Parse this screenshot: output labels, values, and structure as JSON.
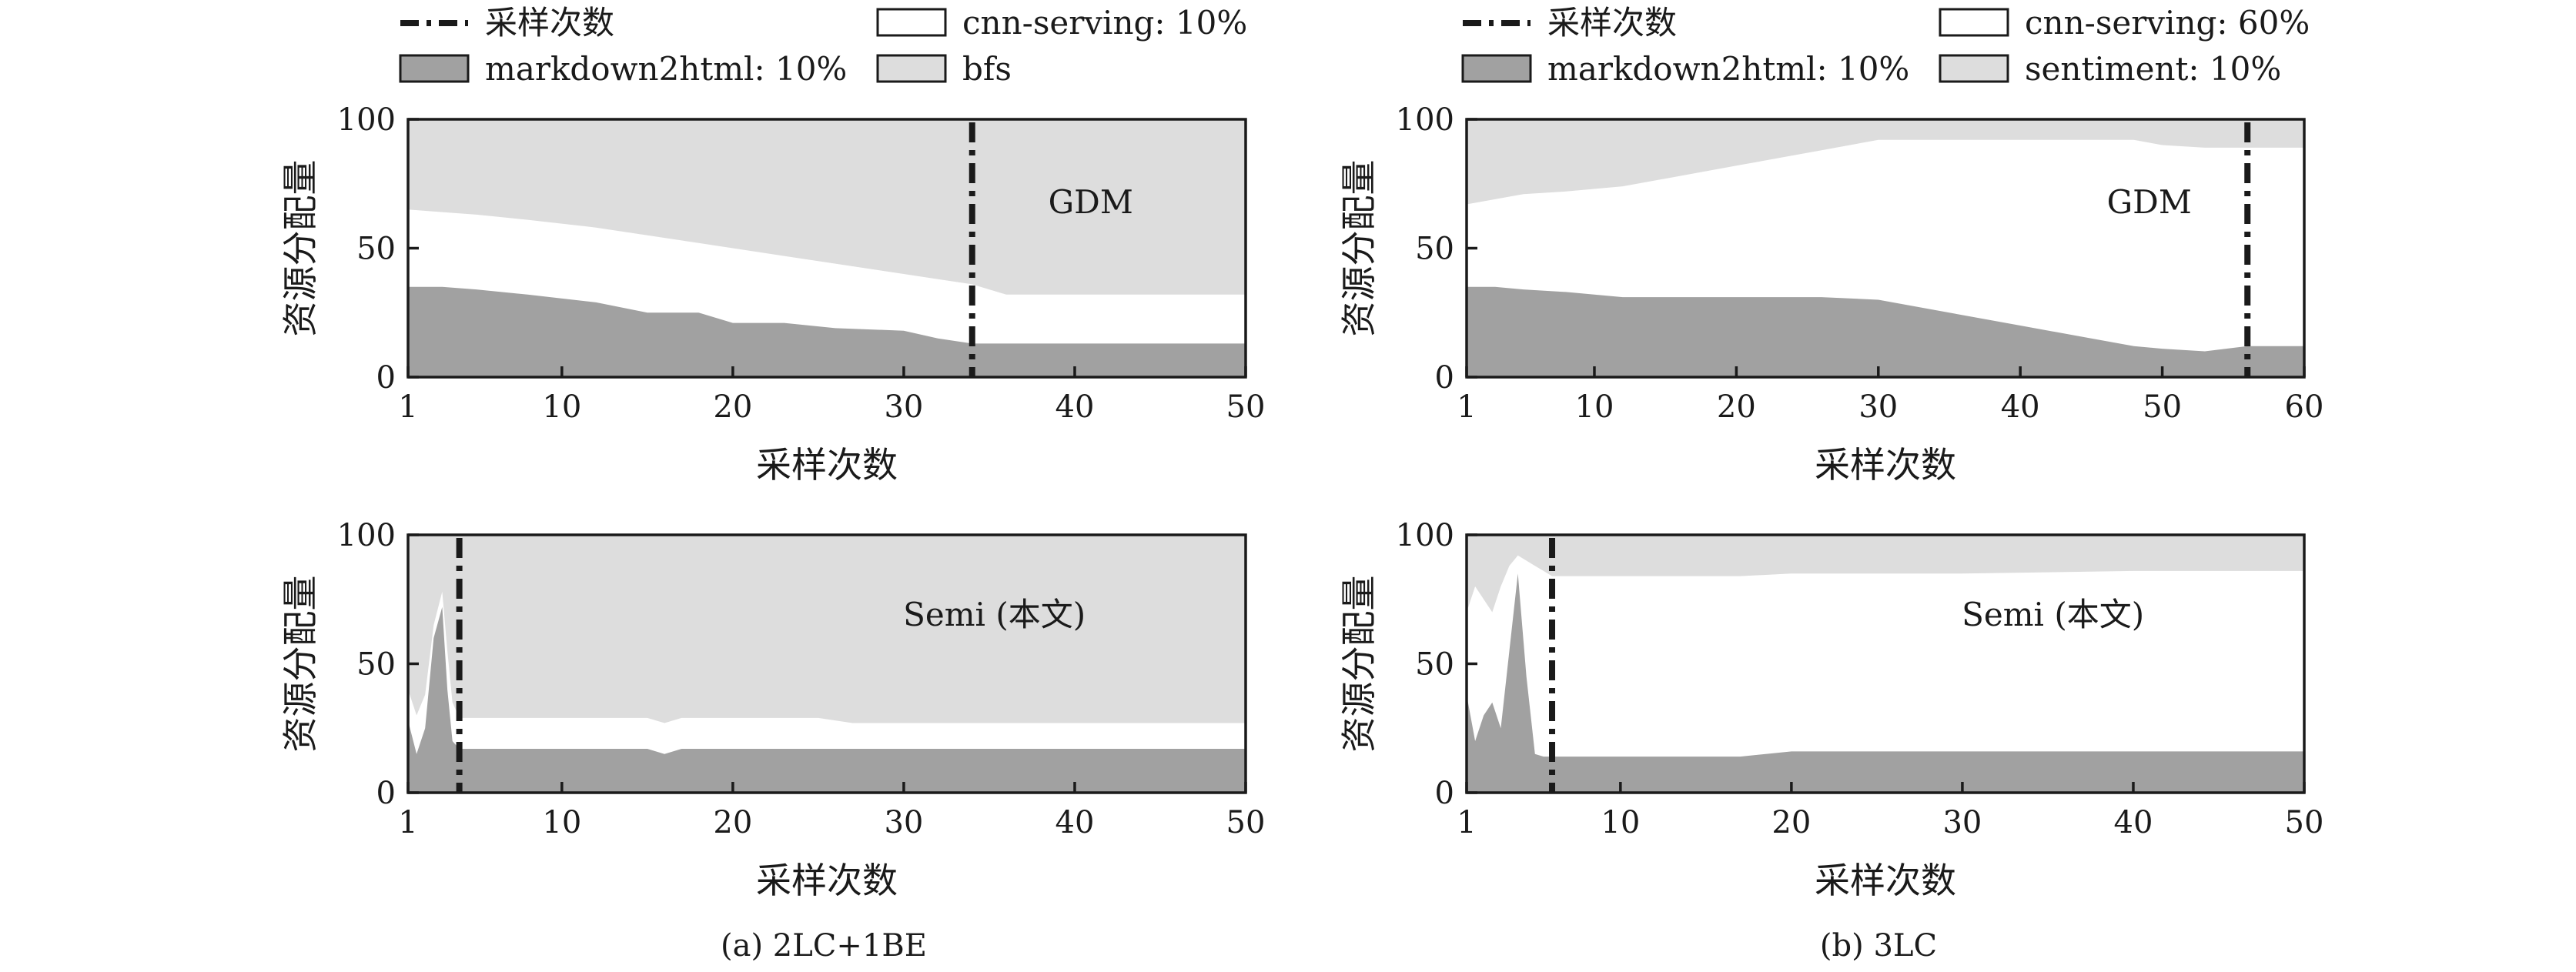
{
  "colors": {
    "md": "#a1a1a1",
    "cnn": "#ffffff",
    "third": "#dddddd",
    "text": "#1a1a1a",
    "frame": "#1a1a1a"
  },
  "panel_a": {
    "caption": "(a)  2LC+1BE",
    "legend": {
      "sampling": "采样次数",
      "cnn": "cnn-serving: 10%",
      "md": "markdown2html: 10%",
      "third": "bfs"
    }
  },
  "panel_b": {
    "caption": "(b)  3LC",
    "legend": {
      "sampling": "采样次数",
      "cnn": "cnn-serving: 60%",
      "md": "markdown2html: 10%",
      "third": "sentiment: 10%"
    }
  },
  "chart_data": [
    {
      "id": "a_gdm",
      "type": "area",
      "stacked": true,
      "annotation": "GDM",
      "xlabel": "采样次数",
      "ylabel": "资源分配量",
      "xlim": [
        1,
        50
      ],
      "ylim": [
        0,
        100
      ],
      "xticks": [
        1,
        10,
        20,
        30,
        40,
        50
      ],
      "yticks": [
        0,
        50,
        100
      ],
      "vline": 34,
      "x": [
        1,
        3,
        5,
        8,
        12,
        15,
        18,
        20,
        23,
        26,
        30,
        32,
        34,
        36,
        40,
        45,
        50
      ],
      "series": [
        {
          "key": "md",
          "values": [
            35,
            35,
            34,
            32,
            29,
            25,
            25,
            21,
            21,
            19,
            18,
            15,
            13,
            13,
            13,
            13,
            13
          ]
        },
        {
          "key": "cnn",
          "values": [
            65,
            64,
            63,
            61,
            58,
            55,
            52,
            50,
            47,
            44,
            40,
            38,
            36,
            32,
            32,
            32,
            32
          ]
        },
        {
          "key": "third",
          "values": [
            100,
            100,
            100,
            100,
            100,
            100,
            100,
            100,
            100,
            100,
            100,
            100,
            100,
            100,
            100,
            100,
            100
          ]
        }
      ]
    },
    {
      "id": "b_gdm",
      "type": "area",
      "stacked": true,
      "annotation": "GDM",
      "xlabel": "采样次数",
      "ylabel": "资源分配量",
      "xlim": [
        1,
        60
      ],
      "ylim": [
        0,
        100
      ],
      "xticks": [
        1,
        10,
        20,
        30,
        40,
        50,
        60
      ],
      "yticks": [
        0,
        50,
        100
      ],
      "vline": 56,
      "x": [
        1,
        3,
        5,
        8,
        12,
        15,
        18,
        20,
        23,
        26,
        30,
        35,
        40,
        45,
        48,
        50,
        53,
        56,
        58,
        60
      ],
      "series": [
        {
          "key": "md",
          "values": [
            35,
            35,
            34,
            33,
            31,
            31,
            31,
            31,
            31,
            31,
            30,
            25,
            20,
            15,
            12,
            11,
            10,
            12,
            12,
            12
          ]
        },
        {
          "key": "cnn",
          "values": [
            67,
            69,
            71,
            72,
            74,
            77,
            80,
            82,
            85,
            88,
            92,
            92,
            92,
            92,
            92,
            90,
            89,
            89,
            89,
            89
          ]
        },
        {
          "key": "third",
          "values": [
            100,
            100,
            100,
            100,
            100,
            100,
            100,
            100,
            100,
            100,
            100,
            100,
            100,
            100,
            100,
            100,
            100,
            100,
            100,
            100
          ]
        }
      ]
    },
    {
      "id": "a_semi",
      "type": "area",
      "stacked": true,
      "annotation": "Semi (本文)",
      "xlabel": "采样次数",
      "ylabel": "资源分配量",
      "xlim": [
        1,
        50
      ],
      "ylim": [
        0,
        100
      ],
      "xticks": [
        1,
        10,
        20,
        30,
        40,
        50
      ],
      "yticks": [
        0,
        50,
        100
      ],
      "vline": 4,
      "x": [
        1,
        1.5,
        2,
        2.5,
        3,
        3.3,
        3.6,
        4,
        5,
        10,
        15,
        16,
        17,
        20,
        25,
        27,
        30,
        40,
        50
      ],
      "series": [
        {
          "key": "md",
          "values": [
            28,
            15,
            25,
            60,
            72,
            40,
            20,
            17,
            17,
            17,
            17,
            15,
            17,
            17,
            17,
            17,
            17,
            17,
            17
          ]
        },
        {
          "key": "cnn",
          "values": [
            40,
            30,
            38,
            65,
            78,
            55,
            35,
            29,
            29,
            29,
            29,
            27,
            29,
            29,
            29,
            27,
            27,
            27,
            27
          ]
        },
        {
          "key": "third",
          "values": [
            100,
            100,
            100,
            100,
            100,
            100,
            100,
            100,
            100,
            100,
            100,
            100,
            100,
            100,
            100,
            100,
            100,
            100,
            100
          ]
        }
      ]
    },
    {
      "id": "b_semi",
      "type": "area",
      "stacked": true,
      "annotation": "Semi (本文)",
      "xlabel": "采样次数",
      "ylabel": "资源分配量",
      "xlim": [
        1,
        50
      ],
      "ylim": [
        0,
        100
      ],
      "xticks": [
        1,
        10,
        20,
        30,
        40,
        50
      ],
      "yticks": [
        0,
        50,
        100
      ],
      "vline": 6,
      "x": [
        1,
        1.5,
        2,
        2.5,
        3,
        3.5,
        4,
        4.5,
        5,
        5.5,
        6,
        7,
        10,
        15,
        17,
        20,
        25,
        30,
        40,
        50
      ],
      "series": [
        {
          "key": "md",
          "values": [
            38,
            20,
            30,
            35,
            25,
            55,
            85,
            45,
            15,
            14,
            14,
            14,
            14,
            14,
            14,
            16,
            16,
            16,
            16,
            16
          ]
        },
        {
          "key": "cnn",
          "values": [
            70,
            80,
            75,
            70,
            80,
            88,
            92,
            90,
            88,
            86,
            84,
            84,
            84,
            84,
            84,
            85,
            85,
            85,
            86,
            86
          ]
        },
        {
          "key": "third",
          "values": [
            100,
            100,
            100,
            100,
            100,
            100,
            100,
            100,
            100,
            100,
            100,
            100,
            100,
            100,
            100,
            100,
            100,
            100,
            100,
            100
          ]
        }
      ]
    }
  ]
}
